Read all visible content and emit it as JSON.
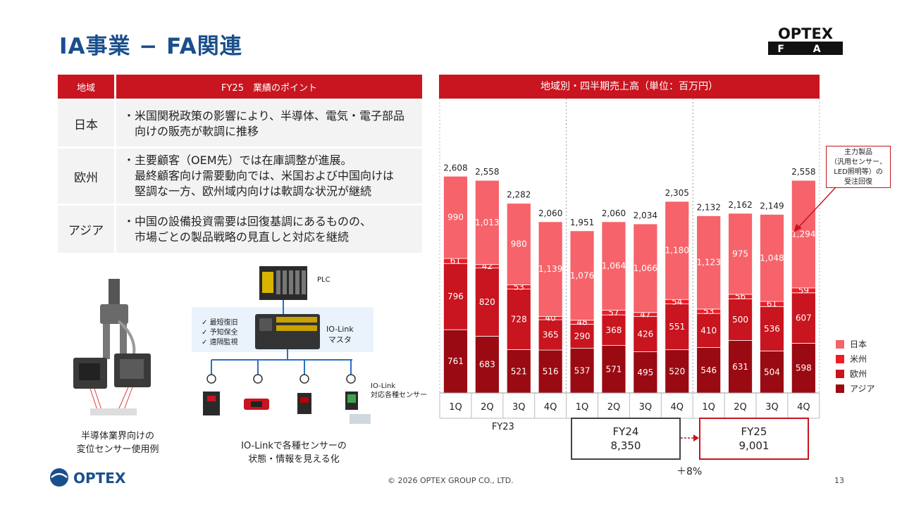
{
  "page": {
    "title": "IA事業 − FA関連",
    "brand_top": "OPTEX",
    "brand_sub": "F A",
    "footer": "© 2026 OPTEX GROUP CO., LTD.",
    "page_number": "13",
    "logo_text": "OPTEX"
  },
  "table": {
    "headers": [
      "地域",
      "FY25　業績のポイント"
    ],
    "rows": [
      {
        "region": "日本",
        "lines": [
          "・米国関税政策の影響により、半導体、電気・電子部品",
          "　向けの販売が軟調に推移"
        ]
      },
      {
        "region": "欧州",
        "lines": [
          "・主要顧客（OEM先）では在庫調整が進展。",
          "　最終顧客向け需要動向では、米国および中国向けは",
          "　堅調な一方、欧州域内向けは軟調な状況が継続"
        ]
      },
      {
        "region": "アジア",
        "lines": [
          "・中国の設備投資需要は回復基調にあるものの、",
          "　市場ごとの製品戦略の見直しと対応を継続"
        ]
      }
    ]
  },
  "images": {
    "plc_label": "PLC",
    "iolink_master": [
      "IO-Link",
      "マスタ"
    ],
    "checklist": [
      "最短復旧",
      "予知保全",
      "遠隔監視"
    ],
    "iolink_sensor": [
      "IO-Link",
      "対応各種センサー"
    ],
    "caption_left": [
      "半導体業界向けの",
      "変位センサー使用例"
    ],
    "caption_mid": [
      "IO-Linkで各種センサーの",
      "状態・情報を見える化"
    ]
  },
  "chart_header": "地域別・四半期売上高（単位：百万円）",
  "callout": [
    "主力製品",
    "（汎用センサー、",
    "LED照明等）の",
    "受注回復"
  ],
  "fy_totals": [
    {
      "label": "FY24",
      "value": "8,350"
    },
    {
      "label": "FY25",
      "value": "9,001"
    }
  ],
  "growth": "＋8%",
  "chart_data": {
    "type": "bar",
    "stacked": true,
    "categories": [
      "1Q",
      "2Q",
      "3Q",
      "4Q",
      "1Q",
      "2Q",
      "3Q",
      "4Q",
      "1Q",
      "2Q",
      "3Q",
      "4Q"
    ],
    "groups": [
      {
        "label": "FY23",
        "start": 0,
        "end": 3
      },
      {
        "label": "",
        "start": 4,
        "end": 7
      },
      {
        "label": "",
        "start": 8,
        "end": 11
      }
    ],
    "series": [
      {
        "name": "アジア",
        "color": "#9a0a12",
        "values": [
          761,
          683,
          521,
          516,
          537,
          571,
          495,
          520,
          546,
          631,
          504,
          598
        ]
      },
      {
        "name": "欧州",
        "color": "#c8151f",
        "values": [
          796,
          820,
          728,
          365,
          290,
          368,
          426,
          551,
          410,
          500,
          536,
          607
        ]
      },
      {
        "name": "米州",
        "color": "#ee1c25",
        "values": [
          61,
          42,
          53,
          40,
          48,
          57,
          47,
          54,
          53,
          56,
          61,
          59
        ]
      },
      {
        "name": "日本",
        "color": "#f6636a",
        "values": [
          990,
          1013,
          980,
          1139,
          1076,
          1064,
          1066,
          1180,
          1123,
          975,
          1048,
          1294
        ]
      }
    ],
    "totals": [
      "2,608",
      "2,558",
      "2,282",
      "2,060",
      "1,951",
      "2,060",
      "2,034",
      "2,305",
      "2,132",
      "2,162",
      "2,149",
      "2,558"
    ],
    "legend_order": [
      "日本",
      "米州",
      "欧州",
      "アジア"
    ],
    "legend_position": "right",
    "grid": false
  }
}
